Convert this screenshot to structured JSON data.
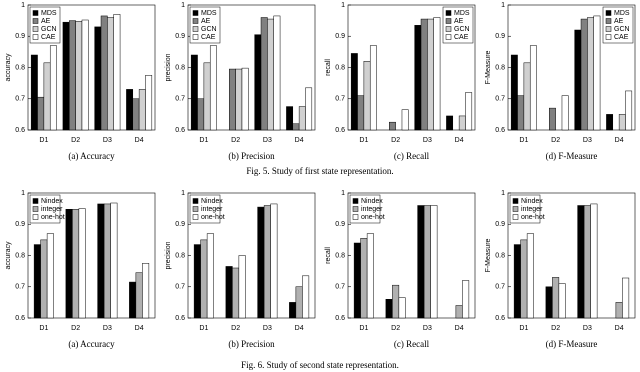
{
  "figure_captions": [
    "Fig. 5.   Study of first state representation.",
    "Fig. 6.   Study of second state representation."
  ],
  "chart_data": [
    {
      "type": "bar",
      "caption": "(a)  Accuracy",
      "ylabel": "accuracy",
      "categories": [
        "D1",
        "D2",
        "D3",
        "D4"
      ],
      "ylim": [
        0.6,
        1
      ],
      "yticks": [
        0.6,
        0.7,
        0.8,
        0.9,
        1
      ],
      "legend": "upper left",
      "series": [
        {
          "name": "MDS",
          "color": "#000000",
          "values": [
            0.84,
            0.945,
            0.93,
            0.73
          ]
        },
        {
          "name": "AE",
          "color": "#808080",
          "values": [
            0.705,
            0.95,
            0.965,
            0.7
          ]
        },
        {
          "name": "GCN",
          "color": "#d0d0d0",
          "values": [
            0.815,
            0.948,
            0.96,
            0.73
          ]
        },
        {
          "name": "CAE",
          "color": "#ffffff",
          "values": [
            0.87,
            0.952,
            0.97,
            0.775
          ]
        }
      ]
    },
    {
      "type": "bar",
      "caption": "(b)  Precision",
      "ylabel": "precision",
      "categories": [
        "D1",
        "D2",
        "D3",
        "D4"
      ],
      "ylim": [
        0.6,
        1
      ],
      "yticks": [
        0.6,
        0.7,
        0.8,
        0.9,
        1
      ],
      "legend": "upper left",
      "series": [
        {
          "name": "MDS",
          "color": "#000000",
          "values": [
            0.84,
            null,
            0.905,
            0.675
          ]
        },
        {
          "name": "AE",
          "color": "#808080",
          "values": [
            0.7,
            0.795,
            0.96,
            0.62
          ]
        },
        {
          "name": "GCN",
          "color": "#d0d0d0",
          "values": [
            0.815,
            0.795,
            0.955,
            0.675
          ]
        },
        {
          "name": "CAE",
          "color": "#ffffff",
          "values": [
            0.87,
            0.798,
            0.965,
            0.735
          ]
        }
      ]
    },
    {
      "type": "bar",
      "caption": "(c)  Recall",
      "ylabel": "recall",
      "categories": [
        "D1",
        "D2",
        "D3",
        "D4"
      ],
      "ylim": [
        0.6,
        1
      ],
      "yticks": [
        0.6,
        0.7,
        0.8,
        0.9,
        1
      ],
      "legend": "upper right",
      "series": [
        {
          "name": "MDS",
          "color": "#000000",
          "values": [
            0.845,
            null,
            0.935,
            0.645
          ]
        },
        {
          "name": "AE",
          "color": "#808080",
          "values": [
            0.71,
            0.625,
            0.955,
            null
          ]
        },
        {
          "name": "GCN",
          "color": "#d0d0d0",
          "values": [
            0.82,
            null,
            0.955,
            0.645
          ]
        },
        {
          "name": "CAE",
          "color": "#ffffff",
          "values": [
            0.87,
            0.665,
            0.96,
            0.72
          ]
        }
      ]
    },
    {
      "type": "bar",
      "caption": "(d)  F-Measure",
      "ylabel": "F-Measure",
      "categories": [
        "D1",
        "D2",
        "D3",
        "D4"
      ],
      "ylim": [
        0.6,
        1
      ],
      "yticks": [
        0.6,
        0.7,
        0.8,
        0.9,
        1
      ],
      "legend": "upper right",
      "series": [
        {
          "name": "MDS",
          "color": "#000000",
          "values": [
            0.84,
            null,
            0.92,
            0.65
          ]
        },
        {
          "name": "AE",
          "color": "#808080",
          "values": [
            0.71,
            0.67,
            0.955,
            null
          ]
        },
        {
          "name": "GCN",
          "color": "#d0d0d0",
          "values": [
            0.815,
            null,
            0.96,
            0.65
          ]
        },
        {
          "name": "CAE",
          "color": "#ffffff",
          "values": [
            0.87,
            0.71,
            0.965,
            0.725
          ]
        }
      ]
    },
    {
      "type": "bar",
      "caption": "(a)  Accuracy",
      "ylabel": "accuracy",
      "categories": [
        "D1",
        "D2",
        "D3",
        "D4"
      ],
      "ylim": [
        0.6,
        1
      ],
      "yticks": [
        0.6,
        0.7,
        0.8,
        0.9,
        1
      ],
      "legend": "upper left",
      "series": [
        {
          "name": "Nindex",
          "color": "#000000",
          "values": [
            0.835,
            0.948,
            0.965,
            0.715
          ]
        },
        {
          "name": "integer",
          "color": "#b0b0b0",
          "values": [
            0.85,
            0.948,
            0.965,
            0.745
          ]
        },
        {
          "name": "one-hot",
          "color": "#ffffff",
          "values": [
            0.87,
            0.95,
            0.968,
            0.775
          ]
        }
      ]
    },
    {
      "type": "bar",
      "caption": "(b)  Precision",
      "ylabel": "precision",
      "categories": [
        "D1",
        "D2",
        "D3",
        "D4"
      ],
      "ylim": [
        0.6,
        1
      ],
      "yticks": [
        0.6,
        0.7,
        0.8,
        0.9,
        1
      ],
      "legend": "upper left",
      "series": [
        {
          "name": "Nindex",
          "color": "#000000",
          "values": [
            0.835,
            0.765,
            0.955,
            0.65
          ]
        },
        {
          "name": "integer",
          "color": "#b0b0b0",
          "values": [
            0.85,
            0.76,
            0.96,
            0.7
          ]
        },
        {
          "name": "one-hot",
          "color": "#ffffff",
          "values": [
            0.87,
            0.8,
            0.965,
            0.735
          ]
        }
      ]
    },
    {
      "type": "bar",
      "caption": "(c)  Recall",
      "ylabel": "recall",
      "categories": [
        "D1",
        "D2",
        "D3",
        "D4"
      ],
      "ylim": [
        0.6,
        1
      ],
      "yticks": [
        0.6,
        0.7,
        0.8,
        0.9,
        1
      ],
      "legend": "upper left",
      "series": [
        {
          "name": "Nindex",
          "color": "#000000",
          "values": [
            0.84,
            0.66,
            0.96,
            null
          ]
        },
        {
          "name": "integer",
          "color": "#b0b0b0",
          "values": [
            0.855,
            0.705,
            0.96,
            0.64
          ]
        },
        {
          "name": "one-hot",
          "color": "#ffffff",
          "values": [
            0.87,
            0.665,
            0.96,
            0.72
          ]
        }
      ]
    },
    {
      "type": "bar",
      "caption": "(d)  F-Measure",
      "ylabel": "F-Measure",
      "categories": [
        "D1",
        "D2",
        "D3",
        "D4"
      ],
      "ylim": [
        0.6,
        1
      ],
      "yticks": [
        0.6,
        0.7,
        0.8,
        0.9,
        1
      ],
      "legend": "upper left",
      "series": [
        {
          "name": "Nindex",
          "color": "#000000",
          "values": [
            0.835,
            0.7,
            0.96,
            null
          ]
        },
        {
          "name": "integer",
          "color": "#b0b0b0",
          "values": [
            0.85,
            0.73,
            0.96,
            0.65
          ]
        },
        {
          "name": "one-hot",
          "color": "#ffffff",
          "values": [
            0.87,
            0.71,
            0.965,
            0.728
          ]
        }
      ]
    }
  ]
}
